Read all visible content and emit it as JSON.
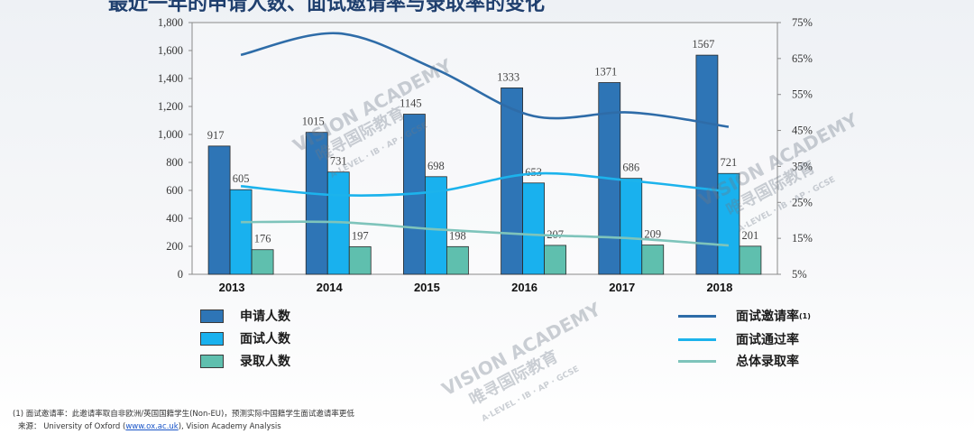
{
  "header": {
    "title": "最近一年的申请人数、面试邀请率与录取率的变化"
  },
  "chart_data": {
    "type": "bar",
    "categories": [
      "2013",
      "2014",
      "2015",
      "2016",
      "2017",
      "2018"
    ],
    "ylim": [
      0,
      1800
    ],
    "yticks": [
      "0",
      "200",
      "400",
      "600",
      "800",
      "1,000",
      "1,200",
      "1,400",
      "1,600",
      "1,800"
    ],
    "y2lim": [
      5,
      75
    ],
    "y2ticks": [
      "5%",
      "15%",
      "25%",
      "35%",
      "45%",
      "55%",
      "65%",
      "75%"
    ],
    "series": [
      {
        "name": "申请人数",
        "values": [
          917,
          1015,
          1145,
          1333,
          1371,
          1567
        ],
        "color": "#2e75b6"
      },
      {
        "name": "面试人数",
        "values": [
          605,
          731,
          698,
          653,
          686,
          721
        ],
        "color": "#19b1ee"
      },
      {
        "name": "录取人数",
        "values": [
          176,
          197,
          198,
          207,
          209,
          201
        ],
        "color": "#5fbfae"
      }
    ],
    "lines": [
      {
        "name": "面试邀请率",
        "marker": "(1)",
        "values": [
          66,
          72,
          62,
          49,
          50,
          46
        ],
        "color": "#2e6ca8"
      },
      {
        "name": "面试通过率",
        "values": [
          29.5,
          27,
          28,
          33,
          31,
          28
        ],
        "color": "#1cb3ec"
      },
      {
        "name": "总体录取率",
        "values": [
          19.5,
          19.5,
          17.5,
          16,
          15,
          13
        ],
        "color": "#7ec4bb"
      }
    ],
    "grid": false,
    "legend_position": "bottom"
  },
  "legend": {
    "applicants": "申请人数",
    "interviewees": "面试人数",
    "admitted": "录取人数",
    "invite_rate": "面试邀请率",
    "invite_rate_mark": "(1)",
    "pass_rate": "面试通过率",
    "admit_rate": "总体录取率"
  },
  "footnotes": {
    "note1": "(1) 面试邀请率：此邀请率取自非欧洲/英国国籍学生(Non-EU)，预测实际中国籍学生面试邀请率更低",
    "source_prefix": "来源： University of Oxford (",
    "source_link": "www.ox.ac.uk",
    "source_suffix": "), Vision Academy Analysis"
  },
  "watermark": {
    "name": "VISION ACADEMY",
    "cn": "唯寻国际教育",
    "sub": "A·LEVEL · IB · AP · GCSE"
  }
}
